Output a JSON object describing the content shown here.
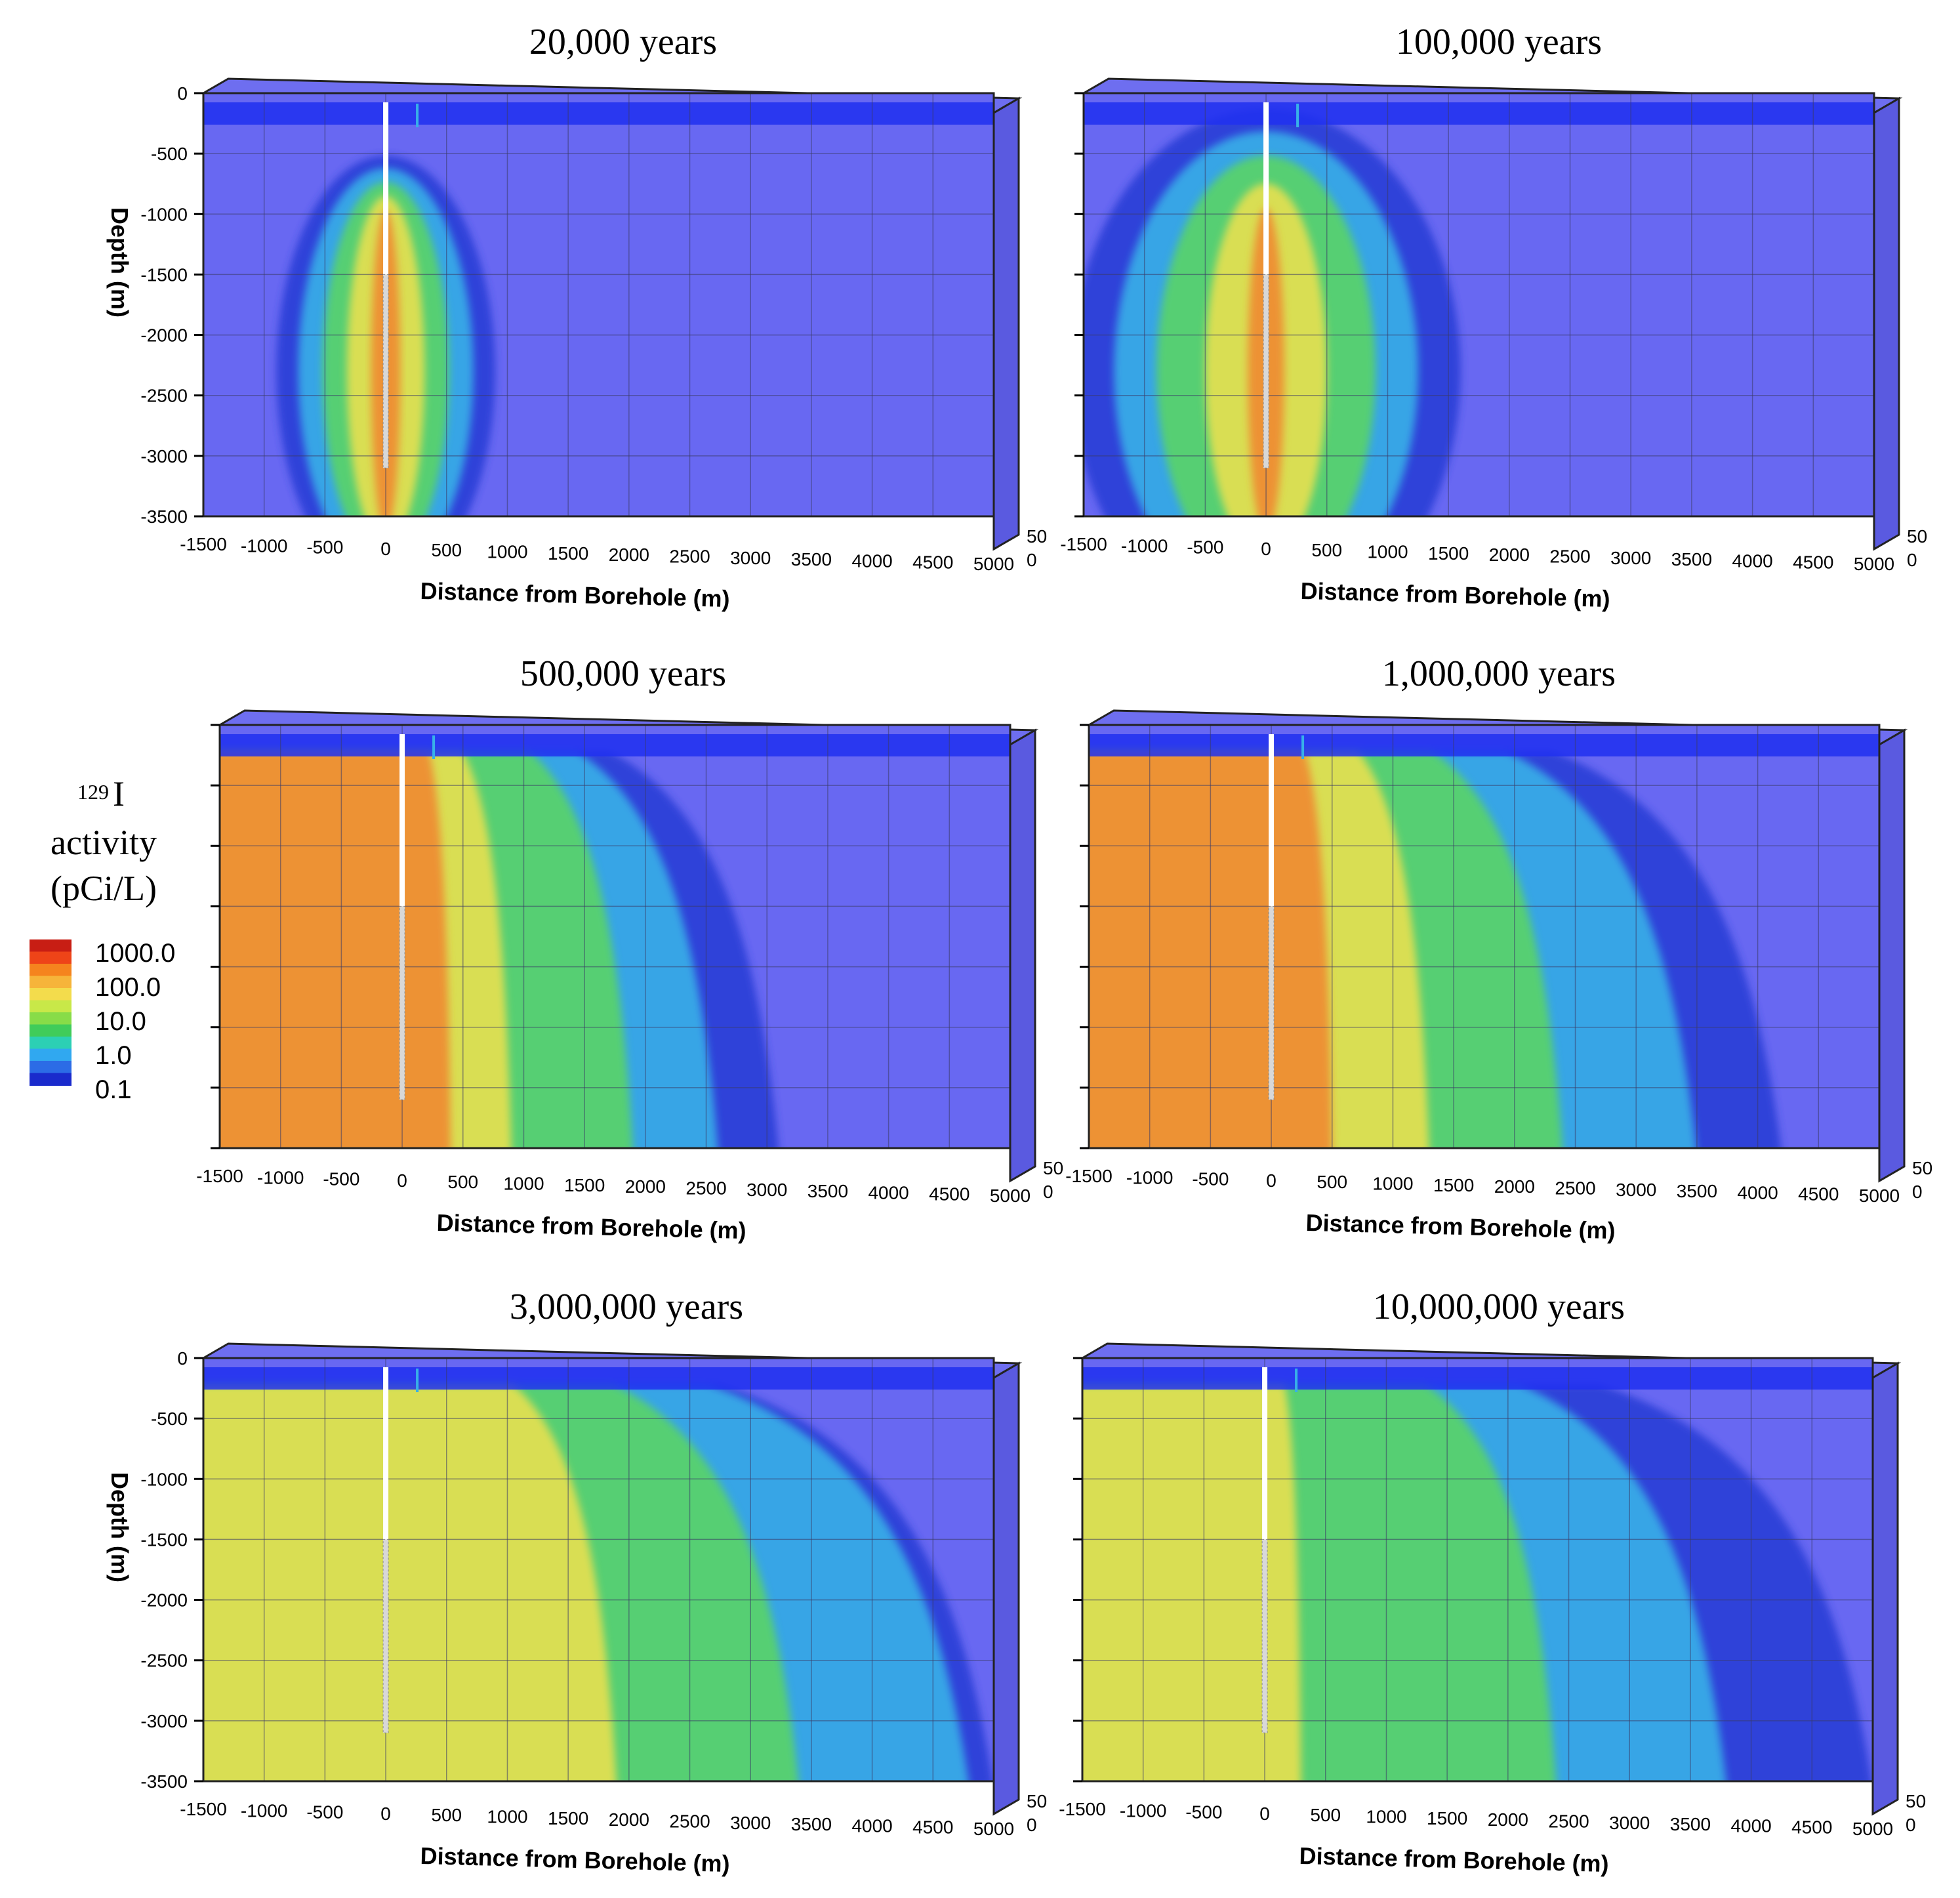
{
  "chart_data": {
    "type": "contour",
    "legend": {
      "title_sup": "129",
      "title_main": "I",
      "title_line2": "activity",
      "title_line3": "(pCi/L)",
      "labels": [
        "1000.0",
        "100.0",
        "10.0",
        "1.0",
        "0.1"
      ],
      "colors": [
        "#c81e14",
        "#ee4418",
        "#f5841e",
        "#f6b43a",
        "#f3dc4c",
        "#c8e848",
        "#88dc48",
        "#40cc5a",
        "#2cd0b4",
        "#30a8f0",
        "#2c6ce6",
        "#1a2bcc"
      ]
    },
    "xlabel": "Distance from Borehole (m)",
    "ylabel": "Depth (m)",
    "x_ticks": [
      "-1500",
      "-1000",
      "-500",
      "0",
      "500",
      "1000",
      "1500",
      "2000",
      "2500",
      "3000",
      "3500",
      "4000",
      "4500",
      "5000"
    ],
    "y_ticks": [
      "0",
      "-500",
      "-1000",
      "-1500",
      "-2000",
      "-2500",
      "-3000",
      "-3500"
    ],
    "z_ticks": [
      "50",
      "0"
    ],
    "xlim": [
      -1500,
      5000
    ],
    "ylim": [
      -3500,
      0
    ],
    "panels": [
      {
        "title": "20,000 years",
        "ylabel_shown": true,
        "yticks_shown": true,
        "plume": [
          {
            "level": 0.1,
            "extent": 900
          },
          {
            "level": 1,
            "extent": 720
          },
          {
            "level": 10,
            "extent": 520
          },
          {
            "level": 100,
            "extent": 320
          },
          {
            "level": 1000,
            "extent": 120
          }
        ]
      },
      {
        "title": "100,000 years",
        "ylabel_shown": false,
        "yticks_shown": false,
        "plume": [
          {
            "level": 0.1,
            "extent": 1600
          },
          {
            "level": 1,
            "extent": 1250
          },
          {
            "level": 10,
            "extent": 900
          },
          {
            "level": 100,
            "extent": 500
          },
          {
            "level": 1000,
            "extent": 150
          }
        ]
      },
      {
        "title": "500,000 years",
        "ylabel_shown": false,
        "yticks_shown": false,
        "plume": [
          {
            "level": 0.1,
            "extent": 3100
          },
          {
            "level": 1,
            "extent": 2600
          },
          {
            "level": 10,
            "extent": 1900
          },
          {
            "level": 100,
            "extent": 900
          },
          {
            "level": 1000,
            "extent": 400
          }
        ]
      },
      {
        "title": "1,000,000 years",
        "ylabel_shown": false,
        "yticks_shown": false,
        "plume": [
          {
            "level": 0.1,
            "extent": 4200
          },
          {
            "level": 1,
            "extent": 3500
          },
          {
            "level": 10,
            "extent": 2400
          },
          {
            "level": 100,
            "extent": 1300
          },
          {
            "level": 1000,
            "extent": 500
          }
        ]
      },
      {
        "title": "3,000,000 years",
        "ylabel_shown": true,
        "yticks_shown": true,
        "plume": [
          {
            "level": 0.1,
            "extent": 5000
          },
          {
            "level": 1,
            "extent": 4800
          },
          {
            "level": 10,
            "extent": 3400
          },
          {
            "level": 100,
            "extent": 1900
          },
          {
            "level": 1000,
            "extent": 0
          }
        ]
      },
      {
        "title": "10,000,000 years",
        "ylabel_shown": false,
        "yticks_shown": false,
        "plume": [
          {
            "level": 0.1,
            "extent": 5000
          },
          {
            "level": 1,
            "extent": 3800
          },
          {
            "level": 10,
            "extent": 2400
          },
          {
            "level": 100,
            "extent": 300
          },
          {
            "level": 1000,
            "extent": 0
          }
        ]
      }
    ]
  }
}
